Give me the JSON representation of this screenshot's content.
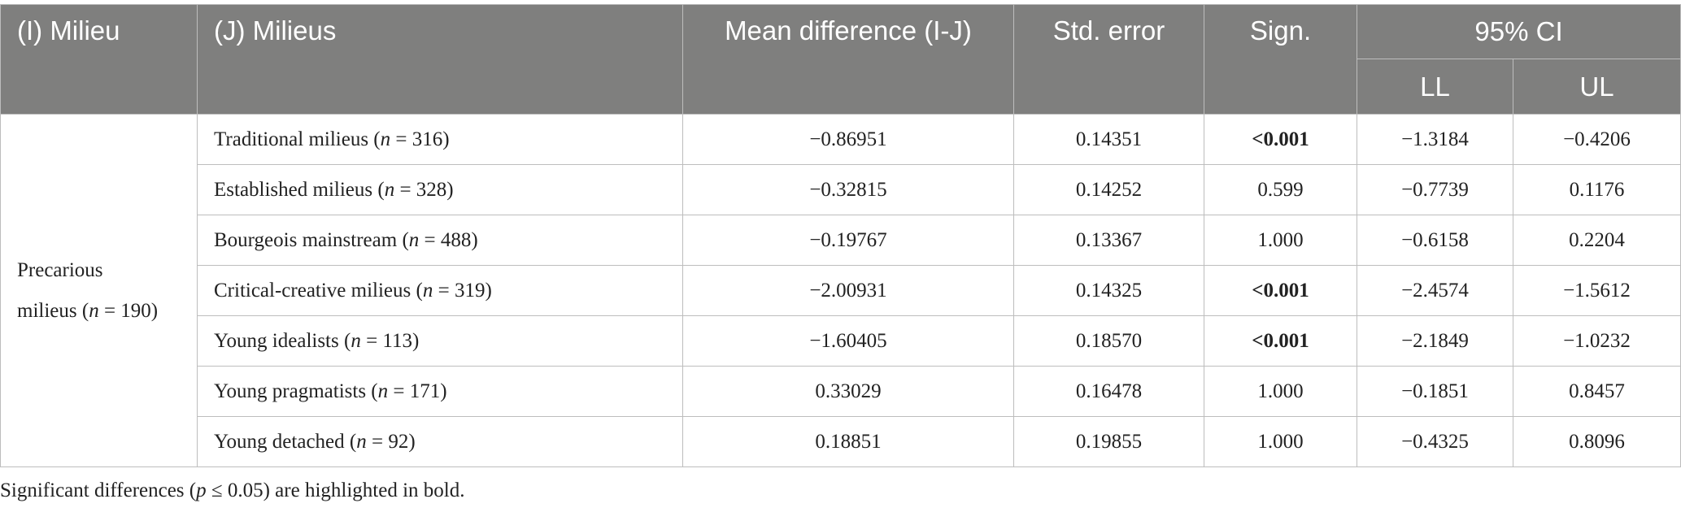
{
  "table": {
    "headers": {
      "milieu": "(I) Milieu",
      "milieus": "(J) Milieus",
      "mean_diff": "Mean difference (I-J)",
      "std_error": "Std. error",
      "sign": "Sign.",
      "ci": "95% CI",
      "ll": "LL",
      "ul": "UL"
    },
    "group": {
      "line1": "Precarious",
      "line2_prefix": "milieus (",
      "n_symbol": "n",
      "line2_suffix": " = 190)"
    },
    "rows": [
      {
        "label": "Traditional milieus (",
        "n": "n",
        "count": " = 316)",
        "mean": "−0.86951",
        "se": "0.14351",
        "sign": "<0.001",
        "sign_bold": true,
        "ll": "−1.3184",
        "ul": "−0.4206"
      },
      {
        "label": "Established milieus (",
        "n": "n",
        "count": " = 328)",
        "mean": "−0.32815",
        "se": "0.14252",
        "sign": "0.599",
        "sign_bold": false,
        "ll": "−0.7739",
        "ul": "0.1176"
      },
      {
        "label": "Bourgeois mainstream (",
        "n": "n",
        "count": " = 488)",
        "mean": "−0.19767",
        "se": "0.13367",
        "sign": "1.000",
        "sign_bold": false,
        "ll": "−0.6158",
        "ul": "0.2204"
      },
      {
        "label": "Critical-creative milieus (",
        "n": "n",
        "count": " = 319)",
        "mean": "−2.00931",
        "se": "0.14325",
        "sign": "<0.001",
        "sign_bold": true,
        "ll": "−2.4574",
        "ul": "−1.5612"
      },
      {
        "label": "Young idealists (",
        "n": "n",
        "count": " = 113)",
        "mean": "−1.60405",
        "se": "0.18570",
        "sign": "<0.001",
        "sign_bold": true,
        "ll": "−2.1849",
        "ul": "−1.0232"
      },
      {
        "label": "Young pragmatists (",
        "n": "n",
        "count": " = 171)",
        "mean": "0.33029",
        "se": "0.16478",
        "sign": "1.000",
        "sign_bold": false,
        "ll": "−0.1851",
        "ul": "0.8457"
      },
      {
        "label": "Young detached (",
        "n": "n",
        "count": " = 92)",
        "mean": "0.18851",
        "se": "0.19855",
        "sign": "1.000",
        "sign_bold": false,
        "ll": "−0.4325",
        "ul": "0.8096"
      }
    ]
  },
  "footnote": {
    "prefix": "Significant differences (",
    "p": "p",
    "suffix": " ≤ 0.05) are highlighted in bold."
  }
}
